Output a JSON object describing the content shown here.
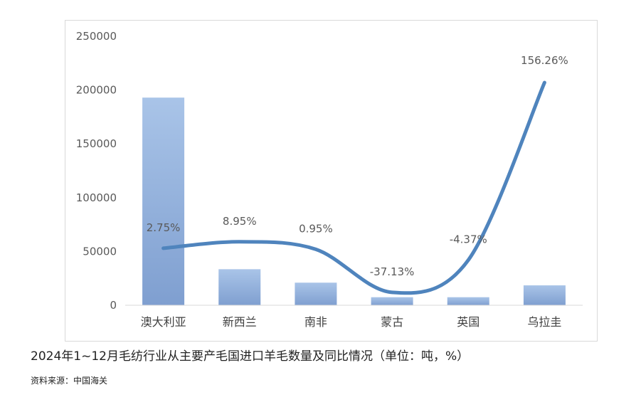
{
  "chart_data": {
    "type": "bar",
    "categories": [
      "澳大利亚",
      "新西兰",
      "南非",
      "蒙古",
      "英国",
      "乌拉圭"
    ],
    "values": [
      193000,
      33500,
      21000,
      7500,
      7500,
      18500
    ],
    "line_series": {
      "values": [
        53000,
        59000,
        52000,
        12000,
        42000,
        207000
      ],
      "labels": [
        "2.75%",
        "8.95%",
        "0.95%",
        "-37.13%",
        "-4.37%",
        "156.26%"
      ]
    },
    "ylim": [
      0,
      250000
    ],
    "yticks": [
      "0",
      "50000",
      "100000",
      "150000",
      "200000",
      "250000"
    ],
    "grid": false,
    "legend": "none",
    "colors": {
      "bar_top": "#a9c4e8",
      "bar_bottom": "#7f9fd0",
      "line": "#4f84bd",
      "axis": "#d9d9d9"
    }
  },
  "caption": "2024年1~12月毛纺行业从主要产毛国进口羊毛数量及同比情况（单位：吨，%）",
  "source": "资料来源：中国海关"
}
